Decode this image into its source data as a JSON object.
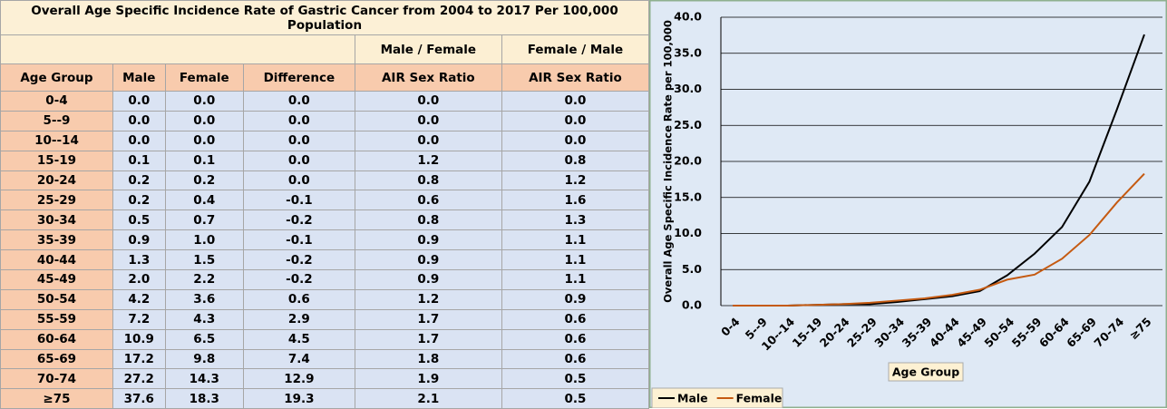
{
  "table": {
    "title": "Overall Age Specific Incidence Rate of Gastric Cancer from 2004 to 2017 Per 100,000 Population",
    "header_top": [
      "Male / Female",
      "Female / Male"
    ],
    "headers": [
      "Age Group",
      "Male",
      "Female",
      "Difference",
      "AIR Sex Ratio",
      "AIR Sex Ratio"
    ],
    "rows": [
      [
        "0-4",
        "0.0",
        "0.0",
        "0.0",
        "0.0",
        "0.0"
      ],
      [
        "5--9",
        "0.0",
        "0.0",
        "0.0",
        "0.0",
        "0.0"
      ],
      [
        "10--14",
        "0.0",
        "0.0",
        "0.0",
        "0.0",
        "0.0"
      ],
      [
        "15-19",
        "0.1",
        "0.1",
        "0.0",
        "1.2",
        "0.8"
      ],
      [
        "20-24",
        "0.2",
        "0.2",
        "0.0",
        "0.8",
        "1.2"
      ],
      [
        "25-29",
        "0.2",
        "0.4",
        "-0.1",
        "0.6",
        "1.6"
      ],
      [
        "30-34",
        "0.5",
        "0.7",
        "-0.2",
        "0.8",
        "1.3"
      ],
      [
        "35-39",
        "0.9",
        "1.0",
        "-0.1",
        "0.9",
        "1.1"
      ],
      [
        "40-44",
        "1.3",
        "1.5",
        "-0.2",
        "0.9",
        "1.1"
      ],
      [
        "45-49",
        "2.0",
        "2.2",
        "-0.2",
        "0.9",
        "1.1"
      ],
      [
        "50-54",
        "4.2",
        "3.6",
        "0.6",
        "1.2",
        "0.9"
      ],
      [
        "55-59",
        "7.2",
        "4.3",
        "2.9",
        "1.7",
        "0.6"
      ],
      [
        "60-64",
        "10.9",
        "6.5",
        "4.5",
        "1.7",
        "0.6"
      ],
      [
        "65-69",
        "17.2",
        "9.8",
        "7.4",
        "1.8",
        "0.6"
      ],
      [
        "70-74",
        "27.2",
        "14.3",
        "12.9",
        "1.9",
        "0.5"
      ],
      [
        "≥75",
        "37.6",
        "18.3",
        "19.3",
        "2.1",
        "0.5"
      ]
    ]
  },
  "chart_data": {
    "type": "line",
    "y_label": "Overall Age Specific Incidence Rate per 100,000",
    "x_label": "Age Group",
    "categories": [
      "0-4",
      "5--9",
      "10--14",
      "15-19",
      "20-24",
      "25-29",
      "30-34",
      "35-39",
      "40-44",
      "45-49",
      "50-54",
      "55-59",
      "60-64",
      "65-69",
      "70-74",
      "≥75"
    ],
    "series": [
      {
        "name": "Male",
        "color": "#000000",
        "values": [
          0.0,
          0.0,
          0.0,
          0.1,
          0.2,
          0.2,
          0.5,
          0.9,
          1.3,
          2.0,
          4.2,
          7.2,
          10.9,
          17.2,
          27.2,
          37.6
        ]
      },
      {
        "name": "Female",
        "color": "#c55a11",
        "values": [
          0.0,
          0.0,
          0.0,
          0.1,
          0.2,
          0.4,
          0.7,
          1.0,
          1.5,
          2.2,
          3.6,
          4.3,
          6.5,
          9.8,
          14.3,
          18.3
        ]
      }
    ],
    "ylim": [
      0,
      40
    ],
    "yticks": [
      {
        "value": 0,
        "label": "0.0"
      },
      {
        "value": 5,
        "label": "5.0"
      },
      {
        "value": 10,
        "label": "10.0"
      },
      {
        "value": 15,
        "label": "15.0"
      },
      {
        "value": 20,
        "label": "20.0"
      },
      {
        "value": 25,
        "label": "25.0"
      },
      {
        "value": 30,
        "label": "30.0"
      },
      {
        "value": 35,
        "label": "35.0"
      },
      {
        "value": 40,
        "label": "40.0"
      }
    ],
    "grid": true,
    "legend": "bottom-left"
  }
}
